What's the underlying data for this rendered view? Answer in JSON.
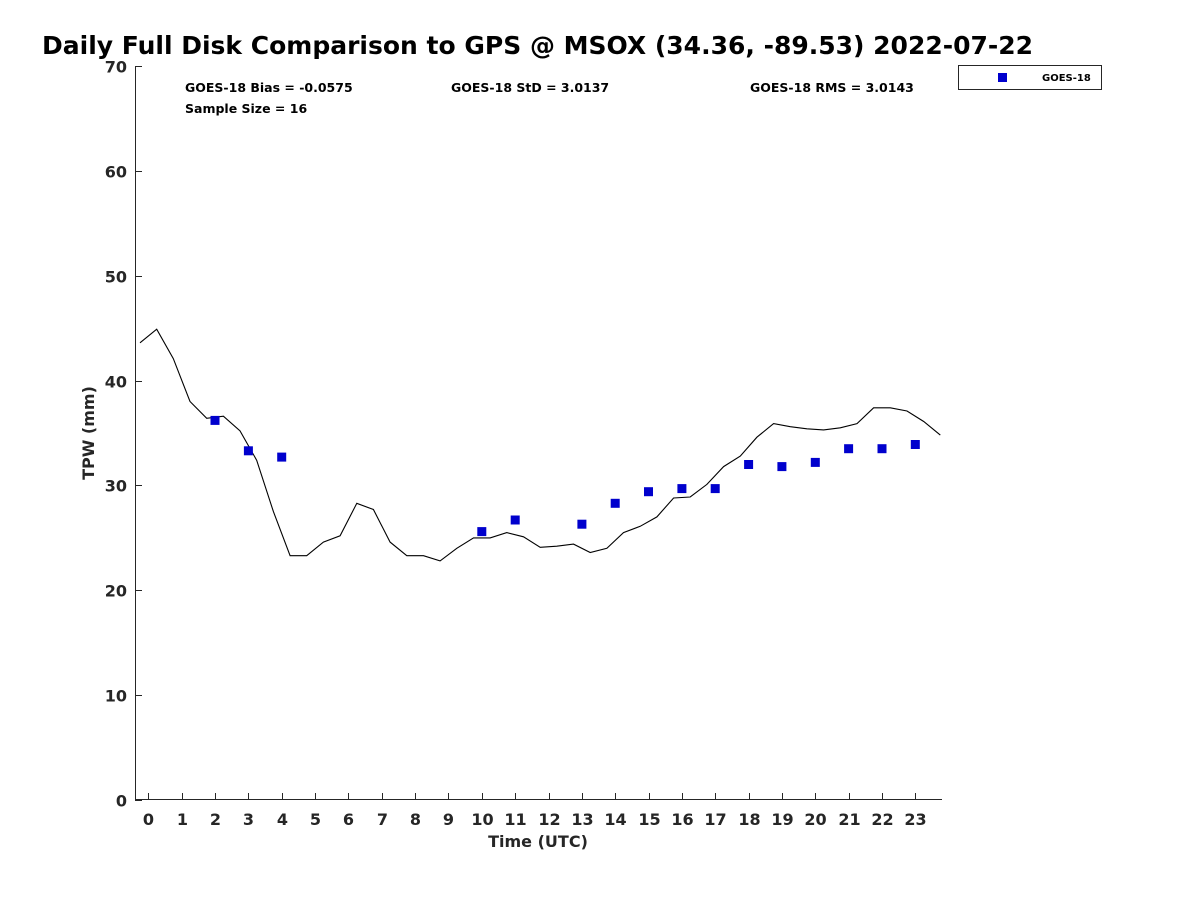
{
  "chart_data": {
    "type": "scatter",
    "title": "Daily Full Disk Comparison to GPS @ MSOX (34.36, -89.53) 2022-07-22",
    "xlabel": "Time (UTC)",
    "ylabel": "TPW (mm)",
    "xlim": [
      -0.4,
      23.8
    ],
    "ylim": [
      0,
      70
    ],
    "xticks": [
      "0",
      "1",
      "2",
      "3",
      "4",
      "5",
      "6",
      "7",
      "8",
      "9",
      "10",
      "11",
      "12",
      "13",
      "14",
      "15",
      "16",
      "17",
      "18",
      "19",
      "20",
      "21",
      "22",
      "23"
    ],
    "yticks": [
      "0",
      "10",
      "20",
      "30",
      "40",
      "50",
      "60",
      "70"
    ],
    "stats": {
      "bias": "GOES-18 Bias = -0.0575",
      "std": "GOES-18 StD = 3.0137",
      "rms": "GOES-18 RMS = 3.0143",
      "sample": "Sample Size = 16"
    },
    "legend": {
      "label": "GOES-18",
      "position": "top-right-outside"
    },
    "colors": {
      "marker": "#0000cd",
      "line": "#000000"
    },
    "series": [
      {
        "name": "GOES-18",
        "kind": "scatter",
        "x": [
          2,
          3,
          4,
          10,
          11,
          13,
          14,
          15,
          16,
          17,
          18,
          19,
          20,
          21,
          22,
          23
        ],
        "y": [
          36.2,
          33.3,
          32.7,
          25.6,
          26.7,
          26.3,
          28.3,
          29.4,
          29.7,
          29.7,
          32.0,
          31.8,
          32.2,
          33.5,
          33.5,
          33.9
        ]
      },
      {
        "name": "GPS",
        "kind": "line",
        "x": [
          -0.25,
          0.25,
          0.75,
          1.25,
          1.75,
          2.25,
          2.75,
          3.25,
          3.75,
          4.25,
          4.75,
          5.25,
          5.75,
          6.25,
          6.75,
          7.25,
          7.75,
          8.25,
          8.75,
          9.25,
          9.75,
          10.25,
          10.75,
          11.25,
          11.75,
          12.25,
          12.75,
          13.25,
          13.75,
          14.25,
          14.75,
          15.25,
          15.75,
          16.25,
          16.75,
          17.25,
          17.75,
          18.25,
          18.75,
          19.25,
          19.75,
          20.25,
          20.75,
          21.25,
          21.75,
          22.25,
          22.75,
          23.25,
          23.75
        ],
        "y": [
          43.6,
          44.9,
          42.1,
          38.0,
          36.4,
          36.6,
          35.2,
          32.4,
          27.5,
          23.3,
          23.3,
          24.6,
          25.2,
          28.3,
          27.7,
          24.6,
          23.3,
          23.3,
          22.8,
          24.0,
          25.0,
          25.0,
          25.5,
          25.1,
          24.1,
          24.2,
          24.4,
          23.6,
          24.0,
          25.5,
          26.1,
          27.0,
          28.8,
          28.9,
          30.1,
          31.8,
          32.8,
          34.6,
          35.9,
          35.6,
          35.4,
          35.3,
          35.5,
          35.9,
          37.4,
          37.4,
          37.1,
          36.1,
          34.8
        ]
      }
    ]
  }
}
